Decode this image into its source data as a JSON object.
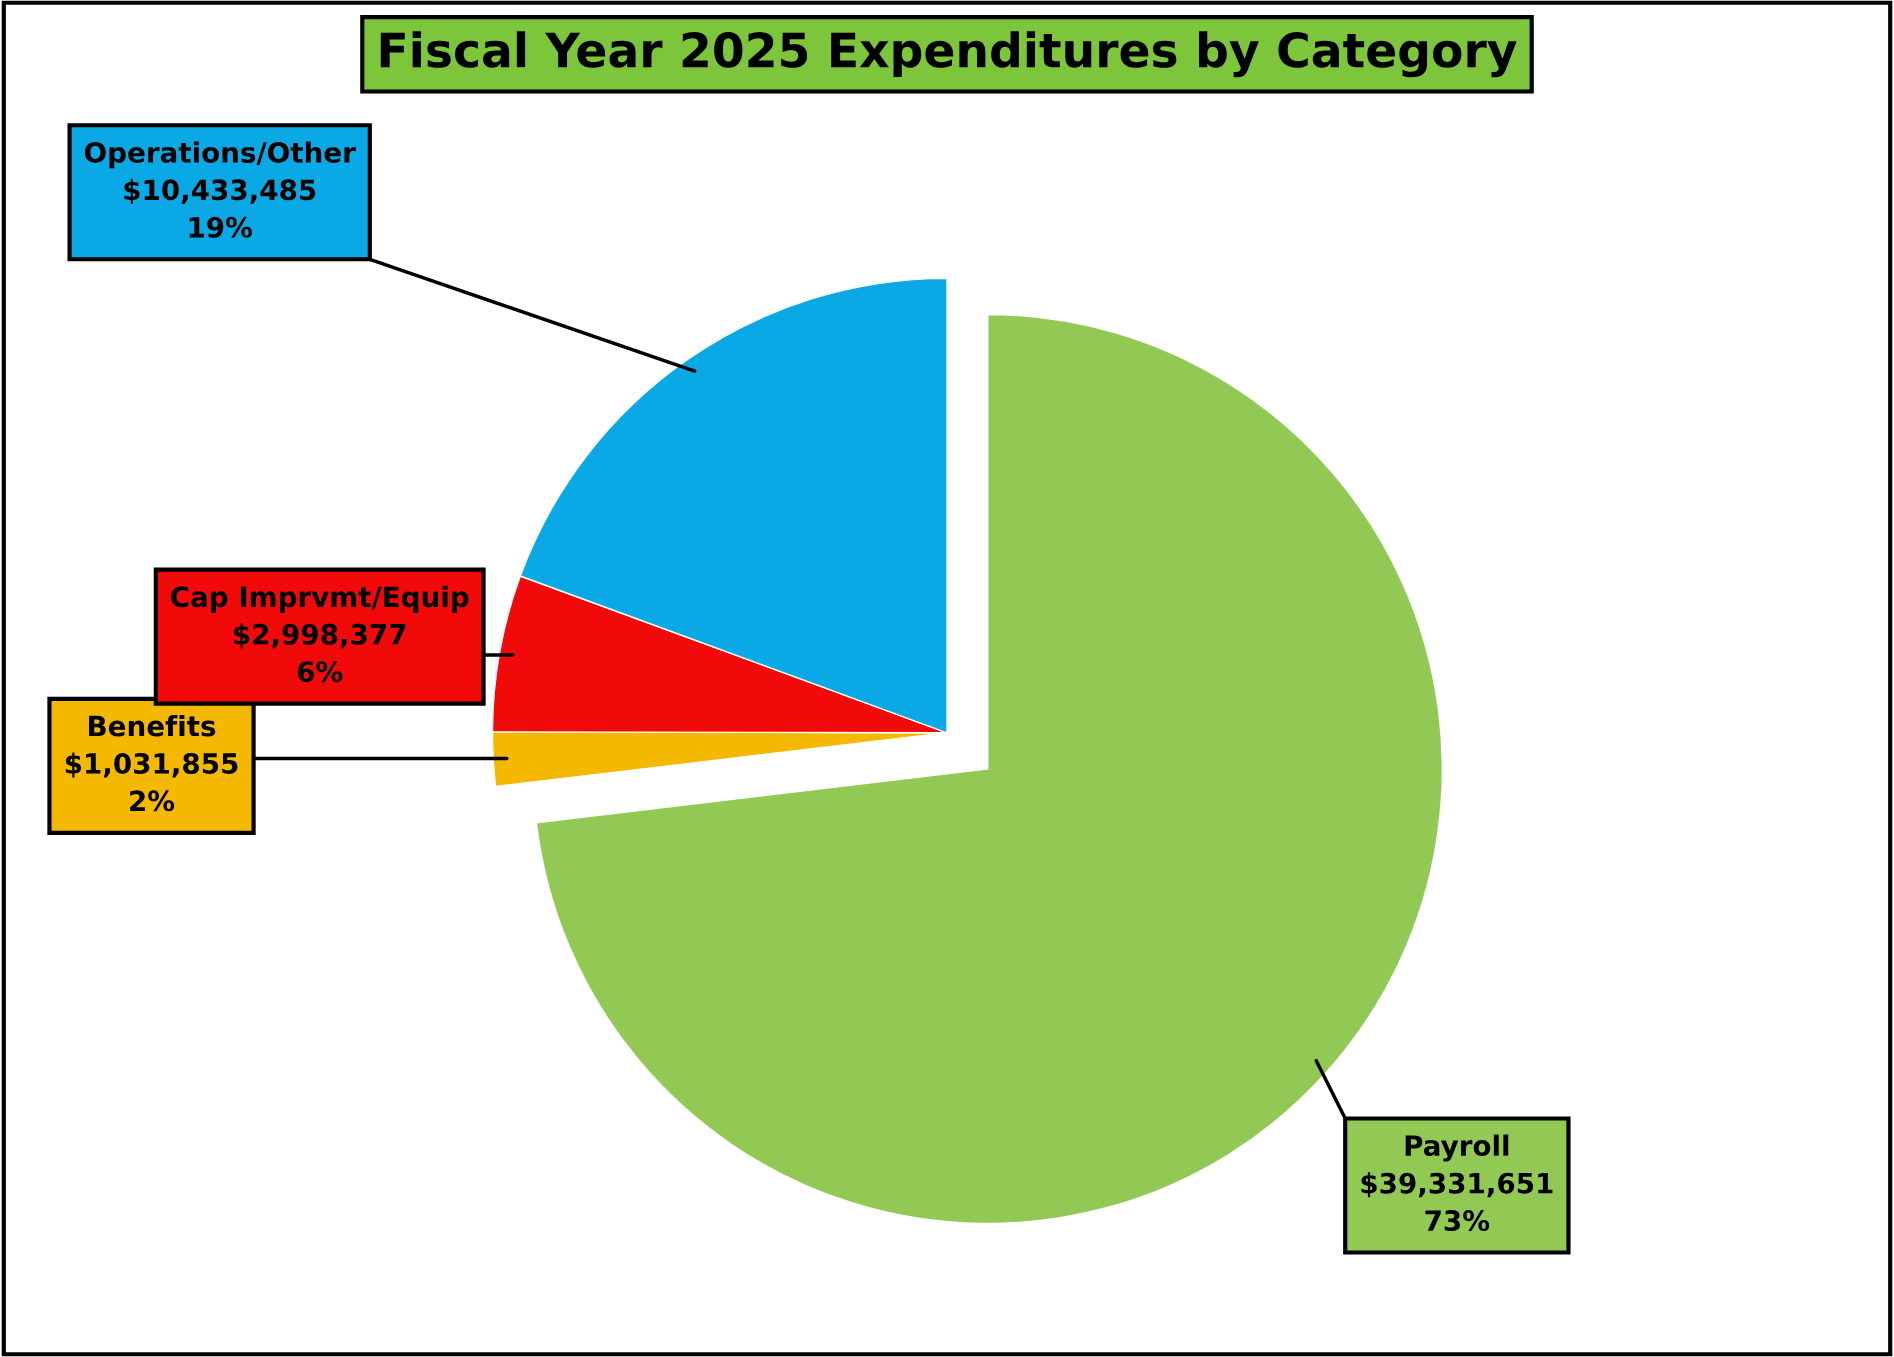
{
  "chart_data": {
    "type": "pie",
    "title": "Fiscal Year 2025 Expenditures by Category",
    "categories": [
      "Payroll",
      "Benefits",
      "Cap Imprvmt/Equip",
      "Operations/Other"
    ],
    "values": [
      39331651,
      1031855,
      2998377,
      10433485
    ],
    "colors": [
      "#92c955",
      "#f5b800",
      "#f20a0a",
      "#0aa9e6"
    ],
    "value_labels": [
      "$39,331,651\n73%",
      "$1,031,855\n2%",
      "$2,998,377\n6%",
      "$10,433,485\n19%"
    ],
    "legend": false
  }
}
